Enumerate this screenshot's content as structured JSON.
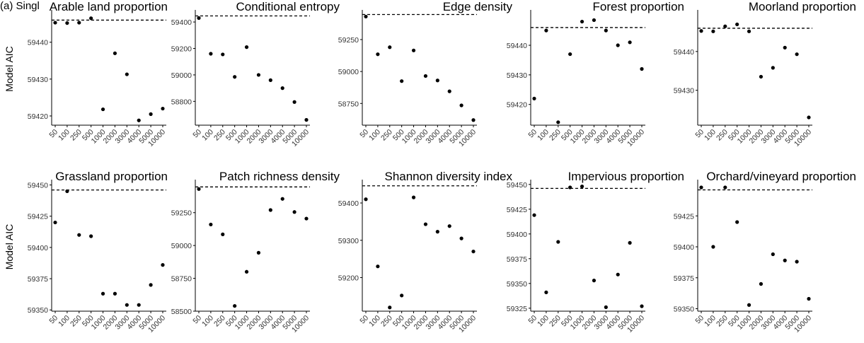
{
  "panel_tag": "(a) Singl",
  "shared_x_categories": [
    "50",
    "100",
    "250",
    "500",
    "1000",
    "2000",
    "3000",
    "4000",
    "5000",
    "10000"
  ],
  "chart_data": [
    {
      "type": "scatter",
      "title": "Arable land proportion",
      "ylabel": "Model AIC",
      "ylim": [
        59417.5,
        59448
      ],
      "yticks": [
        59420,
        59430,
        59440
      ],
      "reference_line": 59446,
      "categories": [
        "50",
        "100",
        "250",
        "500",
        "1000",
        "2000",
        "3000",
        "4000",
        "5000",
        "10000"
      ],
      "values": [
        59445.3,
        59445.2,
        59445.3,
        59446.5,
        59421.8,
        59437,
        59431.3,
        59418.8,
        59420.5,
        59422
      ]
    },
    {
      "type": "scatter",
      "title": "Conditional entropy",
      "ylabel": "",
      "ylim": [
        58620,
        59470
      ],
      "yticks": [
        58800,
        59000,
        59200,
        59400
      ],
      "reference_line": 59446,
      "categories": [
        "50",
        "100",
        "250",
        "500",
        "1000",
        "2000",
        "3000",
        "4000",
        "5000",
        "10000"
      ],
      "values": [
        59430,
        59160,
        59155,
        58985,
        59210,
        59000,
        58960,
        58900,
        58795,
        58660
      ]
    },
    {
      "type": "scatter",
      "title": "Edge density",
      "ylabel": "",
      "ylim": [
        58580,
        59460
      ],
      "yticks": [
        58750,
        59000,
        59250
      ],
      "reference_line": 59446,
      "categories": [
        "50",
        "100",
        "250",
        "500",
        "1000",
        "2000",
        "3000",
        "4000",
        "5000",
        "10000"
      ],
      "values": [
        59430,
        59135,
        59190,
        58925,
        59165,
        58965,
        58930,
        58845,
        58735,
        58620
      ]
    },
    {
      "type": "scatter",
      "title": "Forest proportion",
      "ylabel": "",
      "ylim": [
        59413,
        59451
      ],
      "yticks": [
        59420,
        59430,
        59440
      ],
      "reference_line": 59446,
      "categories": [
        "50",
        "100",
        "250",
        "500",
        "1000",
        "2000",
        "3000",
        "4000",
        "5000",
        "10000"
      ],
      "values": [
        59422,
        59445,
        59414,
        59437,
        59448,
        59448.5,
        59445,
        59440,
        59441,
        59432
      ]
    },
    {
      "type": "scatter",
      "title": "Moorland proportion",
      "ylabel": "",
      "ylim": [
        59421,
        59450
      ],
      "yticks": [
        59430,
        59440
      ],
      "reference_line": 59446,
      "categories": [
        "50",
        "100",
        "250",
        "500",
        "1000",
        "2000",
        "3000",
        "4000",
        "5000",
        "10000"
      ],
      "values": [
        59445.3,
        59445.2,
        59446.5,
        59447,
        59445.2,
        59433.5,
        59435.8,
        59441,
        59439.3,
        59423
      ]
    },
    {
      "type": "scatter",
      "title": "Grassland proportion",
      "ylabel": "Model AIC",
      "ylim": [
        59349,
        59452
      ],
      "yticks": [
        59350,
        59375,
        59400,
        59425,
        59450
      ],
      "reference_line": 59446,
      "categories": [
        "50",
        "100",
        "250",
        "500",
        "1000",
        "2000",
        "3000",
        "4000",
        "5000",
        "10000"
      ],
      "values": [
        59420,
        59445,
        59410,
        59409,
        59363,
        59363,
        59354,
        59354,
        59370,
        59386
      ]
    },
    {
      "type": "scatter",
      "title": "Patch richness density",
      "ylabel": "",
      "ylim": [
        58500,
        59480
      ],
      "yticks": [
        58500,
        58750,
        59000,
        59250
      ],
      "reference_line": 59446,
      "categories": [
        "50",
        "100",
        "250",
        "500",
        "1000",
        "2000",
        "3000",
        "4000",
        "5000",
        "10000"
      ],
      "values": [
        59430,
        59160,
        59085,
        58540,
        58800,
        58945,
        59270,
        59355,
        59255,
        59205
      ]
    },
    {
      "type": "scatter",
      "title": "Shannon diversity index",
      "ylabel": "",
      "ylim": [
        59110,
        59455
      ],
      "yticks": [
        59200,
        59300,
        59400
      ],
      "reference_line": 59446,
      "categories": [
        "50",
        "100",
        "250",
        "500",
        "1000",
        "2000",
        "3000",
        "4000",
        "5000",
        "10000"
      ],
      "values": [
        59410,
        59230,
        59120,
        59152,
        59415,
        59343,
        59323,
        59338,
        59305,
        59270
      ]
    },
    {
      "type": "scatter",
      "title": "Impervious proportion",
      "ylabel": "",
      "ylim": [
        59322,
        59452
      ],
      "yticks": [
        59325,
        59350,
        59375,
        59400,
        59425,
        59450
      ],
      "reference_line": 59446,
      "categories": [
        "50",
        "100",
        "250",
        "500",
        "1000",
        "2000",
        "3000",
        "4000",
        "5000",
        "10000"
      ],
      "values": [
        59419,
        59341,
        59392,
        59447,
        59448,
        59353,
        59326,
        59359,
        59391,
        59327
      ]
    },
    {
      "type": "scatter",
      "title": "Orchard/vineyard proportion",
      "ylabel": "",
      "ylim": [
        59348,
        59452
      ],
      "yticks": [
        59350,
        59375,
        59400,
        59425
      ],
      "reference_line": 59446,
      "categories": [
        "50",
        "100",
        "250",
        "500",
        "1000",
        "2000",
        "3000",
        "4000",
        "5000",
        "10000"
      ],
      "values": [
        59448,
        59400,
        59448,
        59420,
        59353,
        59370,
        59394,
        59389,
        59388,
        59358
      ]
    }
  ]
}
